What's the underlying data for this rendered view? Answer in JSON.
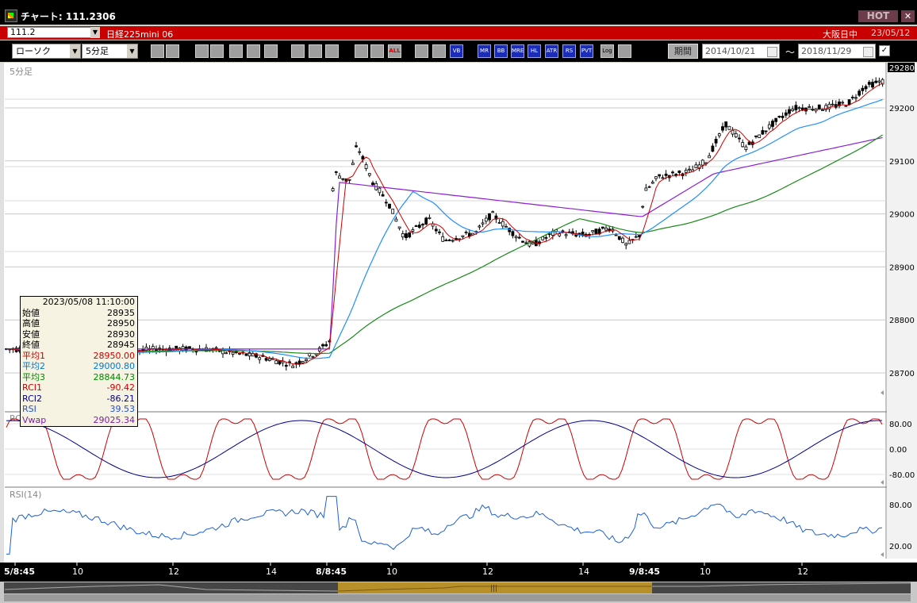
{
  "window": {
    "title": "チャート: 111.2306",
    "hot_label": "HOT",
    "close_label": "✕"
  },
  "info_bar": {
    "symbol_code": "111.2",
    "instrument": "日経225mini 06",
    "exchange": "大阪日中",
    "date": "23/05/12"
  },
  "toolbar": {
    "chart_type": "ローソク",
    "timeframe": "5分足",
    "buttons": [
      "search",
      "bars",
      "drawing",
      "zoom",
      "multi",
      "bull-bear",
      "info",
      "pen",
      "cursor",
      "arrow",
      "cross",
      "blocks",
      "all",
      "tool",
      "palette",
      "vb",
      "mr",
      "bb",
      "mre",
      "hl",
      "atr",
      "rs",
      "pvt",
      "log",
      "icon"
    ],
    "button_labels": {
      "all": "ALL",
      "vb": "VB",
      "mr": "MR",
      "bb": "BB",
      "mre": "MRE",
      "hl": "HL",
      "atr": "ATR",
      "rs": "RS",
      "pvt": "PVT",
      "log": "Log"
    },
    "period_label": "期間",
    "date_from": "2014/10/21",
    "date_to": "2018/11/29",
    "tilde": "〜",
    "check": "✓"
  },
  "main_chart": {
    "pane_label": "5分足",
    "price_axis": [
      "29200",
      "29100",
      "29000",
      "28900",
      "28800",
      "28700"
    ],
    "current_price": "29280"
  },
  "rci_pane": {
    "label": "RC",
    "axis": [
      "80.00",
      "0.00",
      "-80.00"
    ]
  },
  "rsi_pane": {
    "label": "RSI(14)",
    "axis": [
      "80.00",
      "20.00"
    ]
  },
  "time_axis": [
    "5/8:45",
    "10",
    "12",
    "14",
    "8/8:45",
    "10",
    "12",
    "14",
    "9/8:45",
    "10",
    "12"
  ],
  "data_panel": {
    "datetime": "2023/05/08  11:10:00",
    "rows": [
      {
        "label": "始値",
        "value": "28935",
        "color": "#000000"
      },
      {
        "label": "高値",
        "value": "28950",
        "color": "#000000"
      },
      {
        "label": "安値",
        "value": "28930",
        "color": "#000000"
      },
      {
        "label": "終値",
        "value": "28945",
        "color": "#000000"
      },
      {
        "label": "平均1",
        "value": "28950.00",
        "color": "#cc0000"
      },
      {
        "label": "平均2",
        "value": "29000.80",
        "color": "#0077cc"
      },
      {
        "label": "平均3",
        "value": "28844.73",
        "color": "#008800"
      },
      {
        "label": "RCI1",
        "value": "-90.42",
        "color": "#cc0000"
      },
      {
        "label": "RCI2",
        "value": "-86.21",
        "color": "#00008b"
      },
      {
        "label": "RSI",
        "value": "39.53",
        "color": "#1d4fd8"
      },
      {
        "label": "Vwap",
        "value": "29025.34",
        "color": "#7b1fa2"
      }
    ]
  },
  "colors": {
    "title_bar": "#000000",
    "info_bar": "#c80000",
    "background": "#ffffff",
    "ma1": "#cc0000",
    "ma2": "#1e90ff",
    "ma3": "#1a8a1a",
    "vwap": "#8b1fd6",
    "rci1": "#cc0000",
    "rci2": "#00008b",
    "rsi": "#1d5fd8",
    "scroll_thumb": "#b8902a"
  }
}
